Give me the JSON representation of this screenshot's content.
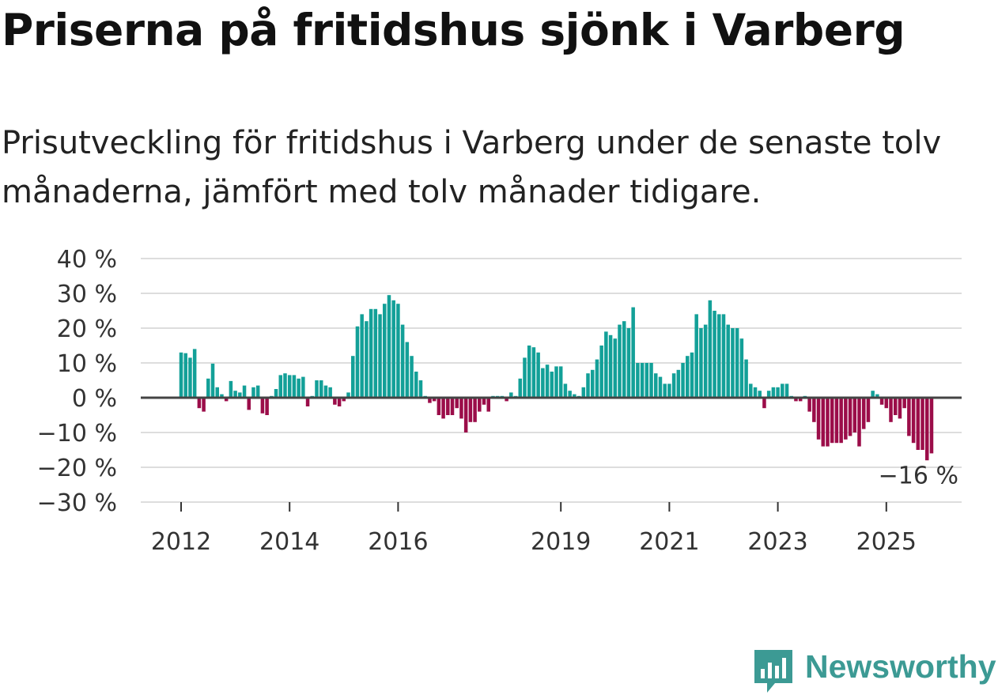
{
  "chart_data": {
    "type": "bar",
    "title": "Priserna på fritidshus sjönk i Varberg",
    "subtitle": "Prisutveckling för fritidshus i Varberg under de senaste tolv månaderna, jämfört med tolv månader tidigare.",
    "xlabel": "",
    "ylabel": "",
    "ylim": [
      -30,
      40
    ],
    "y_ticks": [
      {
        "value": 40,
        "label": "40 %"
      },
      {
        "value": 30,
        "label": "30 %"
      },
      {
        "value": 20,
        "label": "20 %"
      },
      {
        "value": 10,
        "label": "10 %"
      },
      {
        "value": 0,
        "label": "0 %"
      },
      {
        "value": -10,
        "label": "−10 %"
      },
      {
        "value": -20,
        "label": "−20 %"
      },
      {
        "value": -30,
        "label": "−30 %"
      }
    ],
    "x_ticks": [
      {
        "year": 2012,
        "label": "2012"
      },
      {
        "year": 2014,
        "label": "2014"
      },
      {
        "year": 2016,
        "label": "2016"
      },
      {
        "year": 2019,
        "label": "2019"
      },
      {
        "year": 2021,
        "label": "2021"
      },
      {
        "year": 2023,
        "label": "2023"
      },
      {
        "year": 2025,
        "label": "2025"
      }
    ],
    "start": "2012-01",
    "frequency": "monthly",
    "colors": {
      "positive": "#13a098",
      "negative": "#9b0d49",
      "zero_line": "#444444",
      "grid": "#dddddd"
    },
    "annotation": {
      "label": "−16 %",
      "value": -16
    },
    "values": [
      13,
      12.8,
      11.5,
      14,
      -3,
      -4,
      5.5,
      9.8,
      3,
      1,
      -1,
      4.8,
      2,
      1.5,
      3.5,
      -3.5,
      3,
      3.5,
      -4.5,
      -5,
      0.5,
      2.5,
      6.5,
      7,
      6.5,
      6.5,
      5.5,
      6,
      -2.5,
      0.5,
      5,
      5,
      3.5,
      3,
      -2,
      -2.5,
      -1,
      1.5,
      12,
      20.5,
      24,
      22,
      25.5,
      25.5,
      24,
      27,
      29.5,
      28,
      27,
      21,
      16,
      12,
      7.5,
      5,
      0.5,
      -1.5,
      -1,
      -5,
      -6,
      -5,
      -5,
      -3,
      -6,
      -10,
      -7,
      -7,
      -4,
      -2,
      -4,
      0.5,
      0.5,
      0.5,
      -1,
      1.5,
      0.5,
      5.5,
      11.5,
      15,
      14.5,
      13,
      8.5,
      9.5,
      7.5,
      9,
      9,
      4,
      2,
      1,
      0.5,
      3,
      7,
      8,
      11,
      15,
      19,
      18,
      17,
      21,
      22,
      20,
      26,
      10,
      10,
      10,
      10,
      7,
      6,
      4,
      4,
      7,
      8,
      10,
      12,
      13,
      24,
      20,
      21,
      28,
      25,
      24,
      24,
      21,
      20,
      20,
      17,
      11,
      4,
      3,
      2,
      -3,
      2,
      3,
      3,
      4,
      4,
      0.5,
      -1,
      -1,
      0.5,
      -4,
      -7,
      -12,
      -14,
      -14,
      -13,
      -13,
      -13,
      -12,
      -11,
      -10,
      -14,
      -9,
      -7,
      2,
      1,
      -2,
      -3,
      -7,
      -5,
      -6,
      -3,
      -11,
      -13,
      -15,
      -15,
      -18,
      -16
    ]
  },
  "logo": {
    "text": "Newsworthy"
  }
}
